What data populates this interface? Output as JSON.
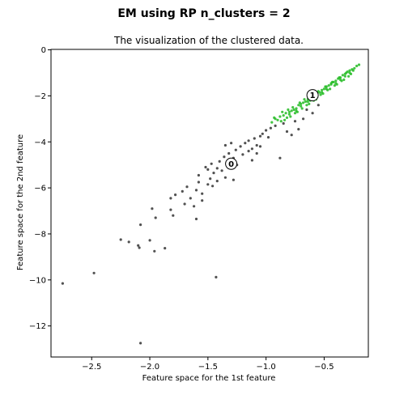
{
  "figure": {
    "suptitle": "EM using RP n_clusters = 2"
  },
  "chart_data": {
    "type": "scatter",
    "title": "The visualization of the clustered data.",
    "xlabel": "Feature space for the 1st feature",
    "ylabel": "Feature space for the 2nd feature",
    "xlim": [
      -2.85,
      -0.12
    ],
    "ylim": [
      -13.35,
      0.02
    ],
    "xticks": [
      -2.5,
      -2.0,
      -1.5,
      -1.0,
      -0.5
    ],
    "xtick_labels": [
      "−2.5",
      "−2.0",
      "−1.5",
      "−1.0",
      "−0.5"
    ],
    "yticks": [
      0,
      -2,
      -4,
      -6,
      -8,
      -10,
      -12
    ],
    "ytick_labels": [
      "0",
      "−2",
      "−4",
      "−6",
      "−8",
      "−10",
      "−12"
    ],
    "grid": false,
    "legend": "none",
    "series": [
      {
        "cluster": 0,
        "color": "#333333",
        "points": [
          [
            -2.75,
            -10.15
          ],
          [
            -2.48,
            -9.7
          ],
          [
            -2.08,
            -12.75
          ],
          [
            -1.43,
            -9.88
          ],
          [
            -2.25,
            -8.25
          ],
          [
            -2.18,
            -8.35
          ],
          [
            -2.1,
            -8.5
          ],
          [
            -2.09,
            -8.6
          ],
          [
            -2.0,
            -8.28
          ],
          [
            -1.96,
            -8.75
          ],
          [
            -1.87,
            -8.62
          ],
          [
            -2.08,
            -7.6
          ],
          [
            -1.98,
            -6.9
          ],
          [
            -1.95,
            -7.3
          ],
          [
            -1.8,
            -7.2
          ],
          [
            -1.82,
            -6.95
          ],
          [
            -1.6,
            -7.35
          ],
          [
            -1.7,
            -6.7
          ],
          [
            -1.82,
            -6.45
          ],
          [
            -1.78,
            -6.3
          ],
          [
            -1.72,
            -6.15
          ],
          [
            -1.68,
            -5.95
          ],
          [
            -1.65,
            -6.45
          ],
          [
            -1.6,
            -6.1
          ],
          [
            -1.58,
            -5.75
          ],
          [
            -1.55,
            -6.25
          ],
          [
            -1.5,
            -5.85
          ],
          [
            -1.48,
            -5.6
          ],
          [
            -1.45,
            -5.35
          ],
          [
            -1.42,
            -5.7
          ],
          [
            -1.38,
            -5.25
          ],
          [
            -1.35,
            -5.55
          ],
          [
            -1.58,
            -5.45
          ],
          [
            -1.52,
            -5.1
          ],
          [
            -1.47,
            -4.95
          ],
          [
            -1.42,
            -5.15
          ],
          [
            -1.4,
            -4.85
          ],
          [
            -1.36,
            -4.65
          ],
          [
            -1.32,
            -4.5
          ],
          [
            -1.28,
            -4.7
          ],
          [
            -1.26,
            -4.35
          ],
          [
            -1.22,
            -4.2
          ],
          [
            -1.2,
            -4.55
          ],
          [
            -1.18,
            -4.05
          ],
          [
            -1.15,
            -3.95
          ],
          [
            -1.12,
            -4.3
          ],
          [
            -1.1,
            -3.85
          ],
          [
            -1.08,
            -4.15
          ],
          [
            -1.05,
            -3.75
          ],
          [
            -1.03,
            -3.65
          ],
          [
            -1.0,
            -3.5
          ],
          [
            -0.98,
            -3.8
          ],
          [
            -0.96,
            -3.4
          ],
          [
            -1.28,
            -5.65
          ],
          [
            -1.25,
            -5.0
          ],
          [
            -1.12,
            -4.8
          ],
          [
            -1.08,
            -4.5
          ],
          [
            -0.88,
            -4.7
          ],
          [
            -0.92,
            -3.3
          ],
          [
            -0.85,
            -3.2
          ],
          [
            -0.82,
            -3.55
          ],
          [
            -0.78,
            -3.7
          ],
          [
            -0.72,
            -3.45
          ],
          [
            -0.68,
            -3.0
          ],
          [
            -0.6,
            -2.75
          ],
          [
            -0.55,
            -2.4
          ],
          [
            -0.65,
            -2.6
          ],
          [
            -0.75,
            -3.1
          ],
          [
            -1.35,
            -4.15
          ],
          [
            -1.3,
            -4.05
          ],
          [
            -1.55,
            -6.55
          ],
          [
            -1.62,
            -6.8
          ],
          [
            -1.46,
            -5.92
          ],
          [
            -1.5,
            -5.2
          ],
          [
            -1.05,
            -4.2
          ],
          [
            -1.15,
            -4.4
          ]
        ]
      },
      {
        "cluster": 1,
        "color": "#22bb22",
        "points": [
          [
            -0.95,
            -3.15
          ],
          [
            -0.92,
            -3.0
          ],
          [
            -0.9,
            -3.05
          ],
          [
            -0.88,
            -2.9
          ],
          [
            -0.85,
            -2.85
          ],
          [
            -0.83,
            -2.75
          ],
          [
            -0.8,
            -2.8
          ],
          [
            -0.78,
            -2.65
          ],
          [
            -0.76,
            -2.6
          ],
          [
            -0.74,
            -2.55
          ],
          [
            -0.72,
            -2.4
          ],
          [
            -0.7,
            -2.45
          ],
          [
            -0.68,
            -2.3
          ],
          [
            -0.66,
            -2.25
          ],
          [
            -0.64,
            -2.15
          ],
          [
            -0.62,
            -2.2
          ],
          [
            -0.6,
            -2.05
          ],
          [
            -0.58,
            -2.0
          ],
          [
            -0.56,
            -1.9
          ],
          [
            -0.54,
            -1.85
          ],
          [
            -0.52,
            -1.75
          ],
          [
            -0.5,
            -1.7
          ],
          [
            -0.48,
            -1.6
          ],
          [
            -0.46,
            -1.55
          ],
          [
            -0.44,
            -1.45
          ],
          [
            -0.42,
            -1.4
          ],
          [
            -0.4,
            -1.35
          ],
          [
            -0.38,
            -1.25
          ],
          [
            -0.36,
            -1.2
          ],
          [
            -0.34,
            -1.1
          ],
          [
            -0.32,
            -1.05
          ],
          [
            -0.3,
            -0.95
          ],
          [
            -0.28,
            -0.9
          ],
          [
            -0.26,
            -0.85
          ],
          [
            -0.24,
            -0.8
          ],
          [
            -0.22,
            -0.7
          ],
          [
            -0.87,
            -3.1
          ],
          [
            -0.82,
            -2.95
          ],
          [
            -0.79,
            -2.9
          ],
          [
            -0.75,
            -2.75
          ],
          [
            -0.73,
            -2.7
          ],
          [
            -0.69,
            -2.55
          ],
          [
            -0.65,
            -2.4
          ],
          [
            -0.63,
            -2.35
          ],
          [
            -0.59,
            -2.2
          ],
          [
            -0.57,
            -2.15
          ],
          [
            -0.53,
            -1.95
          ],
          [
            -0.51,
            -1.9
          ],
          [
            -0.47,
            -1.75
          ],
          [
            -0.45,
            -1.7
          ],
          [
            -0.41,
            -1.55
          ],
          [
            -0.39,
            -1.5
          ],
          [
            -0.35,
            -1.35
          ],
          [
            -0.33,
            -1.3
          ],
          [
            -0.29,
            -1.15
          ],
          [
            -0.27,
            -1.05
          ],
          [
            -0.93,
            -2.95
          ],
          [
            -0.86,
            -2.7
          ],
          [
            -0.81,
            -2.6
          ],
          [
            -0.77,
            -2.5
          ],
          [
            -0.71,
            -2.3
          ],
          [
            -0.67,
            -2.15
          ],
          [
            -0.61,
            -1.95
          ],
          [
            -0.55,
            -1.8
          ],
          [
            -0.49,
            -1.6
          ],
          [
            -0.43,
            -1.4
          ],
          [
            -0.37,
            -1.2
          ],
          [
            -0.31,
            -1.0
          ],
          [
            -0.84,
            -3.05
          ],
          [
            -0.8,
            -2.7
          ],
          [
            -0.74,
            -2.65
          ],
          [
            -0.7,
            -2.35
          ],
          [
            -0.64,
            -2.25
          ],
          [
            -0.6,
            -2.1
          ],
          [
            -0.56,
            -2.05
          ],
          [
            -0.52,
            -1.85
          ],
          [
            -0.48,
            -1.7
          ],
          [
            -0.44,
            -1.5
          ],
          [
            -0.4,
            -1.45
          ],
          [
            -0.36,
            -1.3
          ],
          [
            -0.32,
            -1.15
          ],
          [
            -0.28,
            -1.0
          ],
          [
            -0.25,
            -0.9
          ],
          [
            -0.2,
            -0.65
          ]
        ]
      }
    ],
    "centers": [
      {
        "label": "0",
        "x": -1.3,
        "y": -4.95
      },
      {
        "label": "1",
        "x": -0.6,
        "y": -1.97
      }
    ]
  }
}
